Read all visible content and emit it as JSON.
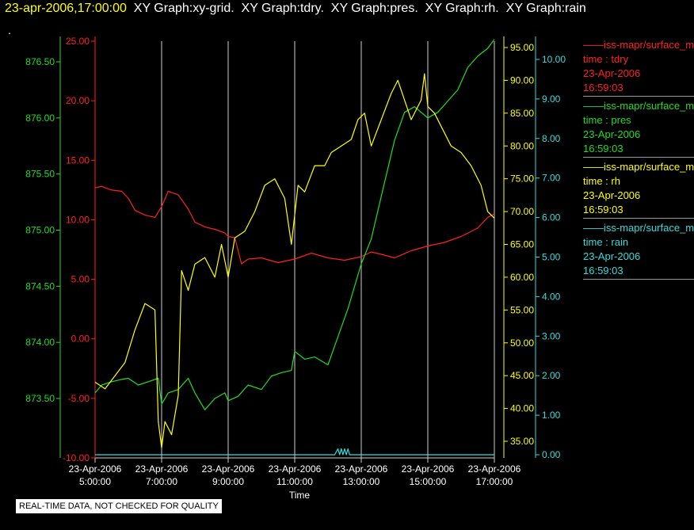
{
  "header": {
    "timestamp": "23-apr-2006,17:00:00",
    "graphs": "  XY Graph:xy-grid.  XY Graph:tdry.  XY Graph:pres.  XY Graph:rh.  XY Graph:rain"
  },
  "dot": ".",
  "disclaimer": "REAL-TIME DATA, NOT CHECKED FOR QUALITY",
  "colors": {
    "tdry": "#ff2020",
    "pres": "#22dd22",
    "rh": "#ffff00",
    "rain": "#33dddd",
    "grid": "#d0d0d0"
  },
  "legend": [
    {
      "name": "——iss-mapr/surface_m",
      "line2": "time : tdry",
      "line3": "23-Apr-2006",
      "line4": "16:59:03",
      "color": "#ff2020"
    },
    {
      "name": "——iss-mapr/surface_m",
      "line2": "time : pres",
      "line3": "23-Apr-2006",
      "line4": "16:59:03",
      "color": "#22dd22"
    },
    {
      "name": "——iss-mapr/surface_m",
      "line2": "time : rh",
      "line3": "23-Apr-2006",
      "line4": "16:59:03",
      "color": "#ffff00"
    },
    {
      "name": "——iss-mapr/surface_m",
      "line2": "time : rain",
      "line3": "23-Apr-2006",
      "line4": "16:59:03",
      "color": "#33dddd"
    }
  ],
  "chart_data": {
    "type": "line",
    "xlabel": "Time",
    "grid": "vertical",
    "x_ticks": [
      {
        "l1": "23-Apr-2006",
        "l2": "5:00:00",
        "h": 5
      },
      {
        "l1": "23-Apr-2006",
        "l2": "7:00:00",
        "h": 7
      },
      {
        "l1": "23-Apr-2006",
        "l2": "9:00:00",
        "h": 9
      },
      {
        "l1": "23-Apr-2006",
        "l2": "11:00:00",
        "h": 11
      },
      {
        "l1": "23-Apr-2006",
        "l2": "13:00:00",
        "h": 13
      },
      {
        "l1": "23-Apr-2006",
        "l2": "15:00:00",
        "h": 15
      },
      {
        "l1": "23-Apr-2006",
        "l2": "17:00:00",
        "h": 17
      }
    ],
    "xlim": [
      5,
      17
    ],
    "axes": {
      "tdry": {
        "ticks": [
          "25.00",
          "20.00",
          "15.00",
          "10.00",
          "5.00",
          "0.00",
          "-5.00",
          "-10.00"
        ],
        "ylim": [
          -10,
          25
        ]
      },
      "pres": {
        "ticks": [
          "876.50",
          "876.00",
          "875.50",
          "875.00",
          "874.50",
          "874.00",
          "873.50"
        ],
        "ylim": [
          873.25,
          876.75
        ]
      },
      "rh": {
        "ticks": [
          "95.00",
          "90.00",
          "85.00",
          "80.00",
          "75.00",
          "70.00",
          "65.00",
          "60.00",
          "55.00",
          "50.00",
          "45.00",
          "40.00",
          "35.00"
        ],
        "ylim": [
          33,
          95
        ]
      },
      "rain": {
        "ticks": [
          "10.00",
          "9.00",
          "8.00",
          "7.00",
          "6.00",
          "5.00",
          "4.00",
          "3.00",
          "2.00",
          "1.00",
          "0.00"
        ],
        "ylim": [
          0,
          10
        ]
      }
    },
    "series": [
      {
        "name": "tdry",
        "x": [
          5,
          5.2,
          5.5,
          5.8,
          6.0,
          6.2,
          6.5,
          6.8,
          7.0,
          7.2,
          7.5,
          7.8,
          8.0,
          8.3,
          8.6,
          8.9,
          9.0,
          9.2,
          9.4,
          9.6,
          10.0,
          10.5,
          11.0,
          11.5,
          12.0,
          12.5,
          13.0,
          13.3,
          13.6,
          14.0,
          14.5,
          15.0,
          15.5,
          16.0,
          16.5,
          16.8,
          17.0
        ],
        "values": [
          12.7,
          12.8,
          12.5,
          12.4,
          11.8,
          10.8,
          10.4,
          10.2,
          11.1,
          12.4,
          12.1,
          10.9,
          9.8,
          9.4,
          9.2,
          8.9,
          8.6,
          8.5,
          6.3,
          6.7,
          6.8,
          6.4,
          6.7,
          7.2,
          6.8,
          6.6,
          6.9,
          7.3,
          7.1,
          6.8,
          7.4,
          7.8,
          8.1,
          8.6,
          9.3,
          10.2,
          10.5
        ]
      },
      {
        "name": "pres",
        "x": [
          5,
          5.2,
          5.5,
          5.8,
          6.0,
          6.3,
          6.6,
          6.9,
          7.0,
          7.2,
          7.5,
          7.8,
          8.0,
          8.3,
          8.6,
          8.9,
          9.0,
          9.3,
          9.6,
          10.0,
          10.3,
          10.6,
          10.9,
          11.0,
          11.3,
          11.6,
          12.0,
          12.3,
          12.6,
          13.0,
          13.3,
          13.6,
          14.0,
          14.3,
          14.6,
          15.0,
          15.3,
          15.6,
          15.9,
          16.2,
          16.5,
          16.8,
          17.0
        ],
        "values": [
          873.55,
          873.62,
          873.65,
          873.67,
          873.68,
          873.62,
          873.65,
          873.68,
          873.45,
          873.55,
          873.58,
          873.68,
          873.55,
          873.4,
          873.5,
          873.55,
          873.48,
          873.52,
          873.62,
          873.58,
          873.7,
          873.73,
          873.75,
          873.92,
          873.85,
          873.87,
          873.8,
          874.05,
          874.3,
          874.7,
          874.92,
          875.3,
          875.8,
          876.05,
          876.1,
          876.0,
          876.05,
          876.15,
          876.25,
          876.45,
          876.55,
          876.62,
          876.7
        ]
      },
      {
        "name": "rh",
        "x": [
          5,
          5.3,
          5.6,
          5.9,
          6.2,
          6.5,
          6.8,
          6.9,
          7.0,
          7.1,
          7.3,
          7.5,
          7.6,
          7.8,
          8.0,
          8.3,
          8.6,
          8.8,
          9.0,
          9.2,
          9.5,
          9.8,
          10.1,
          10.4,
          10.7,
          10.9,
          11.1,
          11.3,
          11.6,
          11.9,
          12.1,
          12.4,
          12.7,
          12.9,
          13.1,
          13.3,
          13.6,
          13.9,
          14.1,
          14.3,
          14.5,
          14.8,
          14.9,
          15.0,
          15.2,
          15.5,
          15.7,
          16.0,
          16.3,
          16.6,
          16.8,
          17.0
        ],
        "values": [
          44,
          43,
          45,
          47,
          52,
          56,
          55,
          38,
          34,
          38,
          36,
          42,
          61,
          58,
          62,
          63,
          60,
          65,
          60,
          66,
          67,
          70,
          74,
          75,
          72,
          65,
          74,
          73,
          77,
          77,
          79,
          80,
          81,
          84,
          85,
          80,
          84,
          88,
          90,
          87,
          84,
          87,
          91,
          86,
          85,
          82,
          80,
          79,
          77,
          74,
          70,
          69
        ]
      },
      {
        "name": "rain",
        "x": [
          5,
          12.2,
          12.3,
          12.35,
          12.4,
          12.45,
          12.5,
          12.55,
          12.6,
          12.65,
          17
        ],
        "values": [
          0,
          0,
          0.15,
          0,
          0.15,
          0,
          0.15,
          0,
          0.15,
          0,
          0
        ]
      }
    ]
  }
}
